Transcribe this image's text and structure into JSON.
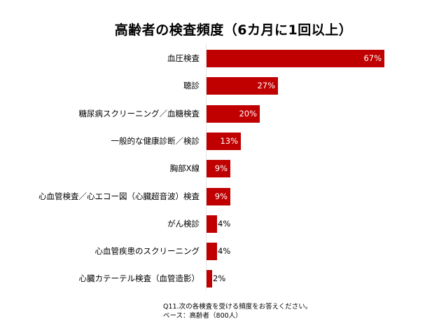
{
  "chart_data": {
    "type": "bar",
    "orientation": "horizontal",
    "title": "高齢者の検査頻度（6カ月に1回以上）",
    "categories": [
      "血圧検査",
      "聴診",
      "糖尿病スクリーニング／血糖検査",
      "一般的な健康診断／検診",
      "胸部X線",
      "心血管検査／心エコー図（心臓超音波）検査",
      "がん検診",
      "心血管疾患のスクリーニング",
      "心臓カテーテル検査（血管造影）"
    ],
    "values": [
      67,
      27,
      20,
      13,
      9,
      9,
      4,
      4,
      2
    ],
    "value_labels": [
      "67%",
      "27%",
      "20%",
      "13%",
      "9%",
      "9%",
      "4%",
      "4%",
      "2%"
    ],
    "unit": "%",
    "xlabel": "",
    "ylabel": "",
    "xlim": [
      0,
      67
    ],
    "grid": false,
    "legend": null,
    "bar_color": "#c00000",
    "footnote": [
      "Q11.次の各検査を受ける頻度をお答えください。",
      "ベース：高齢者（800人）"
    ]
  },
  "title": "高齢者の検査頻度（6カ月に1回以上）",
  "rows": [
    {
      "label": "血圧検査",
      "value": "67%"
    },
    {
      "label": "聴診",
      "value": "27%"
    },
    {
      "label": "糖尿病スクリーニング／血糖検査",
      "value": "20%"
    },
    {
      "label": "一般的な健康診断／検診",
      "value": "13%"
    },
    {
      "label": "胸部X線",
      "value": "9%"
    },
    {
      "label": "心血管検査／心エコー図（心臓超音波）検査",
      "value": "9%"
    },
    {
      "label": "がん検診",
      "value": "4%"
    },
    {
      "label": "心血管疾患のスクリーニング",
      "value": "4%"
    },
    {
      "label": "心臓カテーテル検査（血管造影）",
      "value": "2%"
    }
  ],
  "footnote": {
    "line1": "Q11.次の各検査を受ける頻度をお答えください。",
    "line2": "ベース：高齢者（800人）"
  }
}
